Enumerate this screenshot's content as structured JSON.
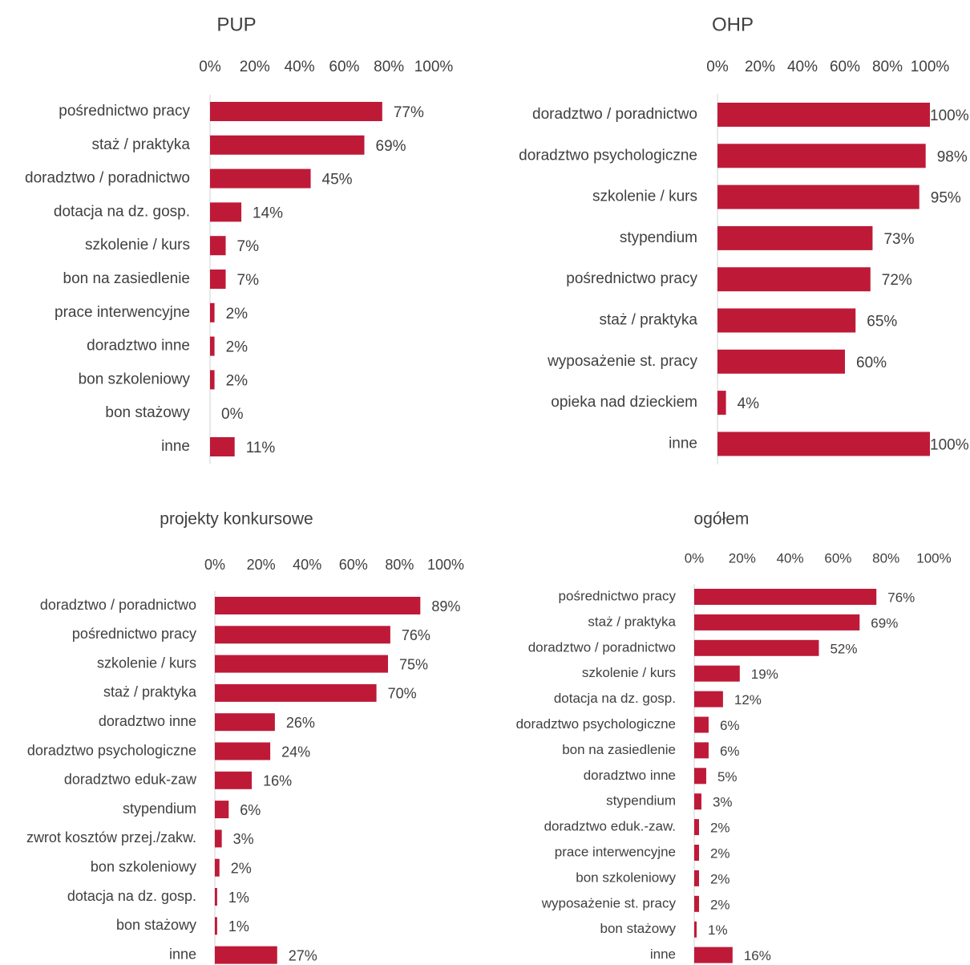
{
  "chart_data": [
    {
      "type": "bar",
      "orientation": "horizontal",
      "title": "PUP",
      "color": "#be1a38",
      "categories": [
        "pośrednictwo pracy",
        "staż / praktyka",
        "doradztwo / poradnictwo",
        "dotacja na dz. gosp.",
        "szkolenie / kurs",
        "bon na zasiedlenie",
        "prace interwencyjne",
        "doradztwo inne",
        "bon szkoleniowy",
        "bon stażowy",
        "inne"
      ],
      "values": [
        77,
        69,
        45,
        14,
        7,
        7,
        2,
        2,
        2,
        0,
        11
      ],
      "value_labels": [
        "77%",
        "69%",
        "45%",
        "14%",
        "7%",
        "7%",
        "2%",
        "2%",
        "2%",
        "0%",
        "11%"
      ],
      "xlim": [
        0,
        100
      ],
      "xticks": [
        {
          "value": 0,
          "label": "0%"
        },
        {
          "value": 20,
          "label": "20%"
        },
        {
          "value": 40,
          "label": "40%"
        },
        {
          "value": 60,
          "label": "60%"
        },
        {
          "value": 80,
          "label": "80%"
        },
        {
          "value": 100,
          "label": "100%"
        }
      ]
    },
    {
      "type": "bar",
      "orientation": "horizontal",
      "title": "OHP",
      "color": "#be1a38",
      "categories": [
        "doradztwo / poradnictwo",
        "doradztwo psychologiczne",
        "szkolenie / kurs",
        "stypendium",
        "pośrednictwo pracy",
        "staż / praktyka",
        "wyposażenie st. pracy",
        "opieka nad dzieckiem",
        "inne"
      ],
      "values": [
        100,
        98,
        95,
        73,
        72,
        65,
        60,
        4,
        100
      ],
      "value_labels": [
        "100%",
        "98%",
        "95%",
        "73%",
        "72%",
        "65%",
        "60%",
        "4%",
        "100%"
      ],
      "xlim": [
        0,
        100
      ],
      "xticks": [
        {
          "value": 0,
          "label": "0%"
        },
        {
          "value": 20,
          "label": "20%"
        },
        {
          "value": 40,
          "label": "40%"
        },
        {
          "value": 60,
          "label": "60%"
        },
        {
          "value": 80,
          "label": "80%"
        },
        {
          "value": 100,
          "label": "100%"
        }
      ]
    },
    {
      "type": "bar",
      "orientation": "horizontal",
      "title": "projekty konkursowe",
      "color": "#be1a38",
      "categories": [
        "doradztwo / poradnictwo",
        "pośrednictwo pracy",
        "szkolenie / kurs",
        "staż / praktyka",
        "doradztwo inne",
        "doradztwo psychologiczne",
        "doradztwo eduk-zaw",
        "stypendium",
        "zwrot kosztów przej./zakw.",
        "bon szkoleniowy",
        "dotacja na dz. gosp.",
        "bon stażowy",
        "inne"
      ],
      "values": [
        89,
        76,
        75,
        70,
        26,
        24,
        16,
        6,
        3,
        2,
        1,
        1,
        27
      ],
      "value_labels": [
        "89%",
        "76%",
        "75%",
        "70%",
        "26%",
        "24%",
        "16%",
        "6%",
        "3%",
        "2%",
        "1%",
        "1%",
        "27%"
      ],
      "xlim": [
        0,
        100
      ],
      "xticks": [
        {
          "value": 0,
          "label": "0%"
        },
        {
          "value": 20,
          "label": "20%"
        },
        {
          "value": 40,
          "label": "40%"
        },
        {
          "value": 60,
          "label": "60%"
        },
        {
          "value": 80,
          "label": "80%"
        },
        {
          "value": 100,
          "label": "100%"
        }
      ]
    },
    {
      "type": "bar",
      "orientation": "horizontal",
      "title": "ogółem",
      "color": "#be1a38",
      "categories": [
        "pośrednictwo pracy",
        "staż / praktyka",
        "doradztwo / poradnictwo",
        "szkolenie / kurs",
        "dotacja na dz. gosp.",
        "doradztwo psychologiczne",
        "bon na zasiedlenie",
        "doradztwo inne",
        "stypendium",
        "doradztwo eduk.-zaw.",
        "prace interwencyjne",
        "bon szkoleniowy",
        "wyposażenie st. pracy",
        "bon stażowy",
        "inne"
      ],
      "values": [
        76,
        69,
        52,
        19,
        12,
        6,
        6,
        5,
        3,
        2,
        2,
        2,
        2,
        1,
        16
      ],
      "value_labels": [
        "76%",
        "69%",
        "52%",
        "19%",
        "12%",
        "6%",
        "6%",
        "5%",
        "3%",
        "2%",
        "2%",
        "2%",
        "2%",
        "1%",
        "16%"
      ],
      "xlim": [
        0,
        100
      ],
      "xticks": [
        {
          "value": 0,
          "label": "0%"
        },
        {
          "value": 20,
          "label": "20%"
        },
        {
          "value": 40,
          "label": "40%"
        },
        {
          "value": 60,
          "label": "60%"
        },
        {
          "value": 80,
          "label": "80%"
        },
        {
          "value": 100,
          "label": "100%"
        }
      ]
    }
  ]
}
